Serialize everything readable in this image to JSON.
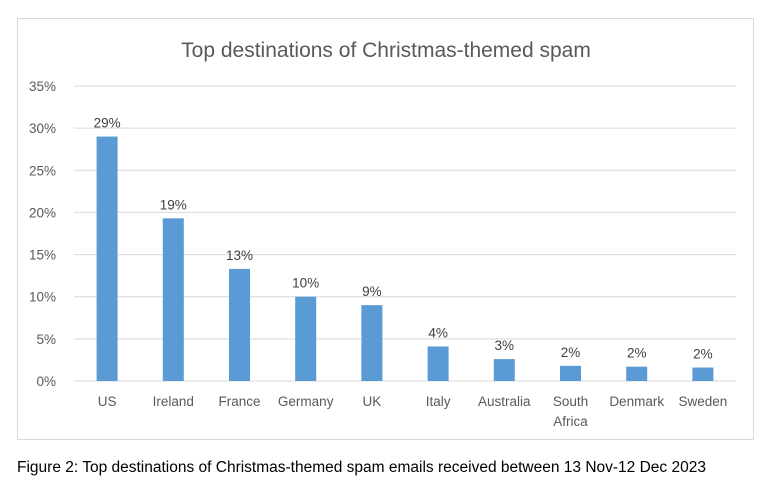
{
  "chart_data": {
    "type": "bar",
    "title": "Top destinations of Christmas-themed spam",
    "categories": [
      "US",
      "Ireland",
      "France",
      "Germany",
      "UK",
      "Italy",
      "Australia",
      "South Africa",
      "Denmark",
      "Sweden"
    ],
    "values": [
      29,
      19.3,
      13.3,
      10,
      9,
      4.1,
      2.6,
      1.8,
      1.7,
      1.6
    ],
    "data_labels": [
      "29%",
      "19%",
      "13%",
      "10%",
      "9%",
      "4%",
      "3%",
      "2%",
      "2%",
      "2%"
    ],
    "y_ticks": [
      "0%",
      "5%",
      "10%",
      "15%",
      "20%",
      "25%",
      "30%",
      "35%"
    ],
    "ylim": [
      0,
      35
    ],
    "xlabel": "",
    "ylabel": "",
    "grid": true,
    "legend": "none",
    "bar_color": "#5b9bd5",
    "grid_color": "#d9d9d9",
    "text_color": "#595959"
  },
  "caption": "Figure 2: Top destinations of Christmas-themed spam emails received between 13 Nov-12 Dec 2023"
}
